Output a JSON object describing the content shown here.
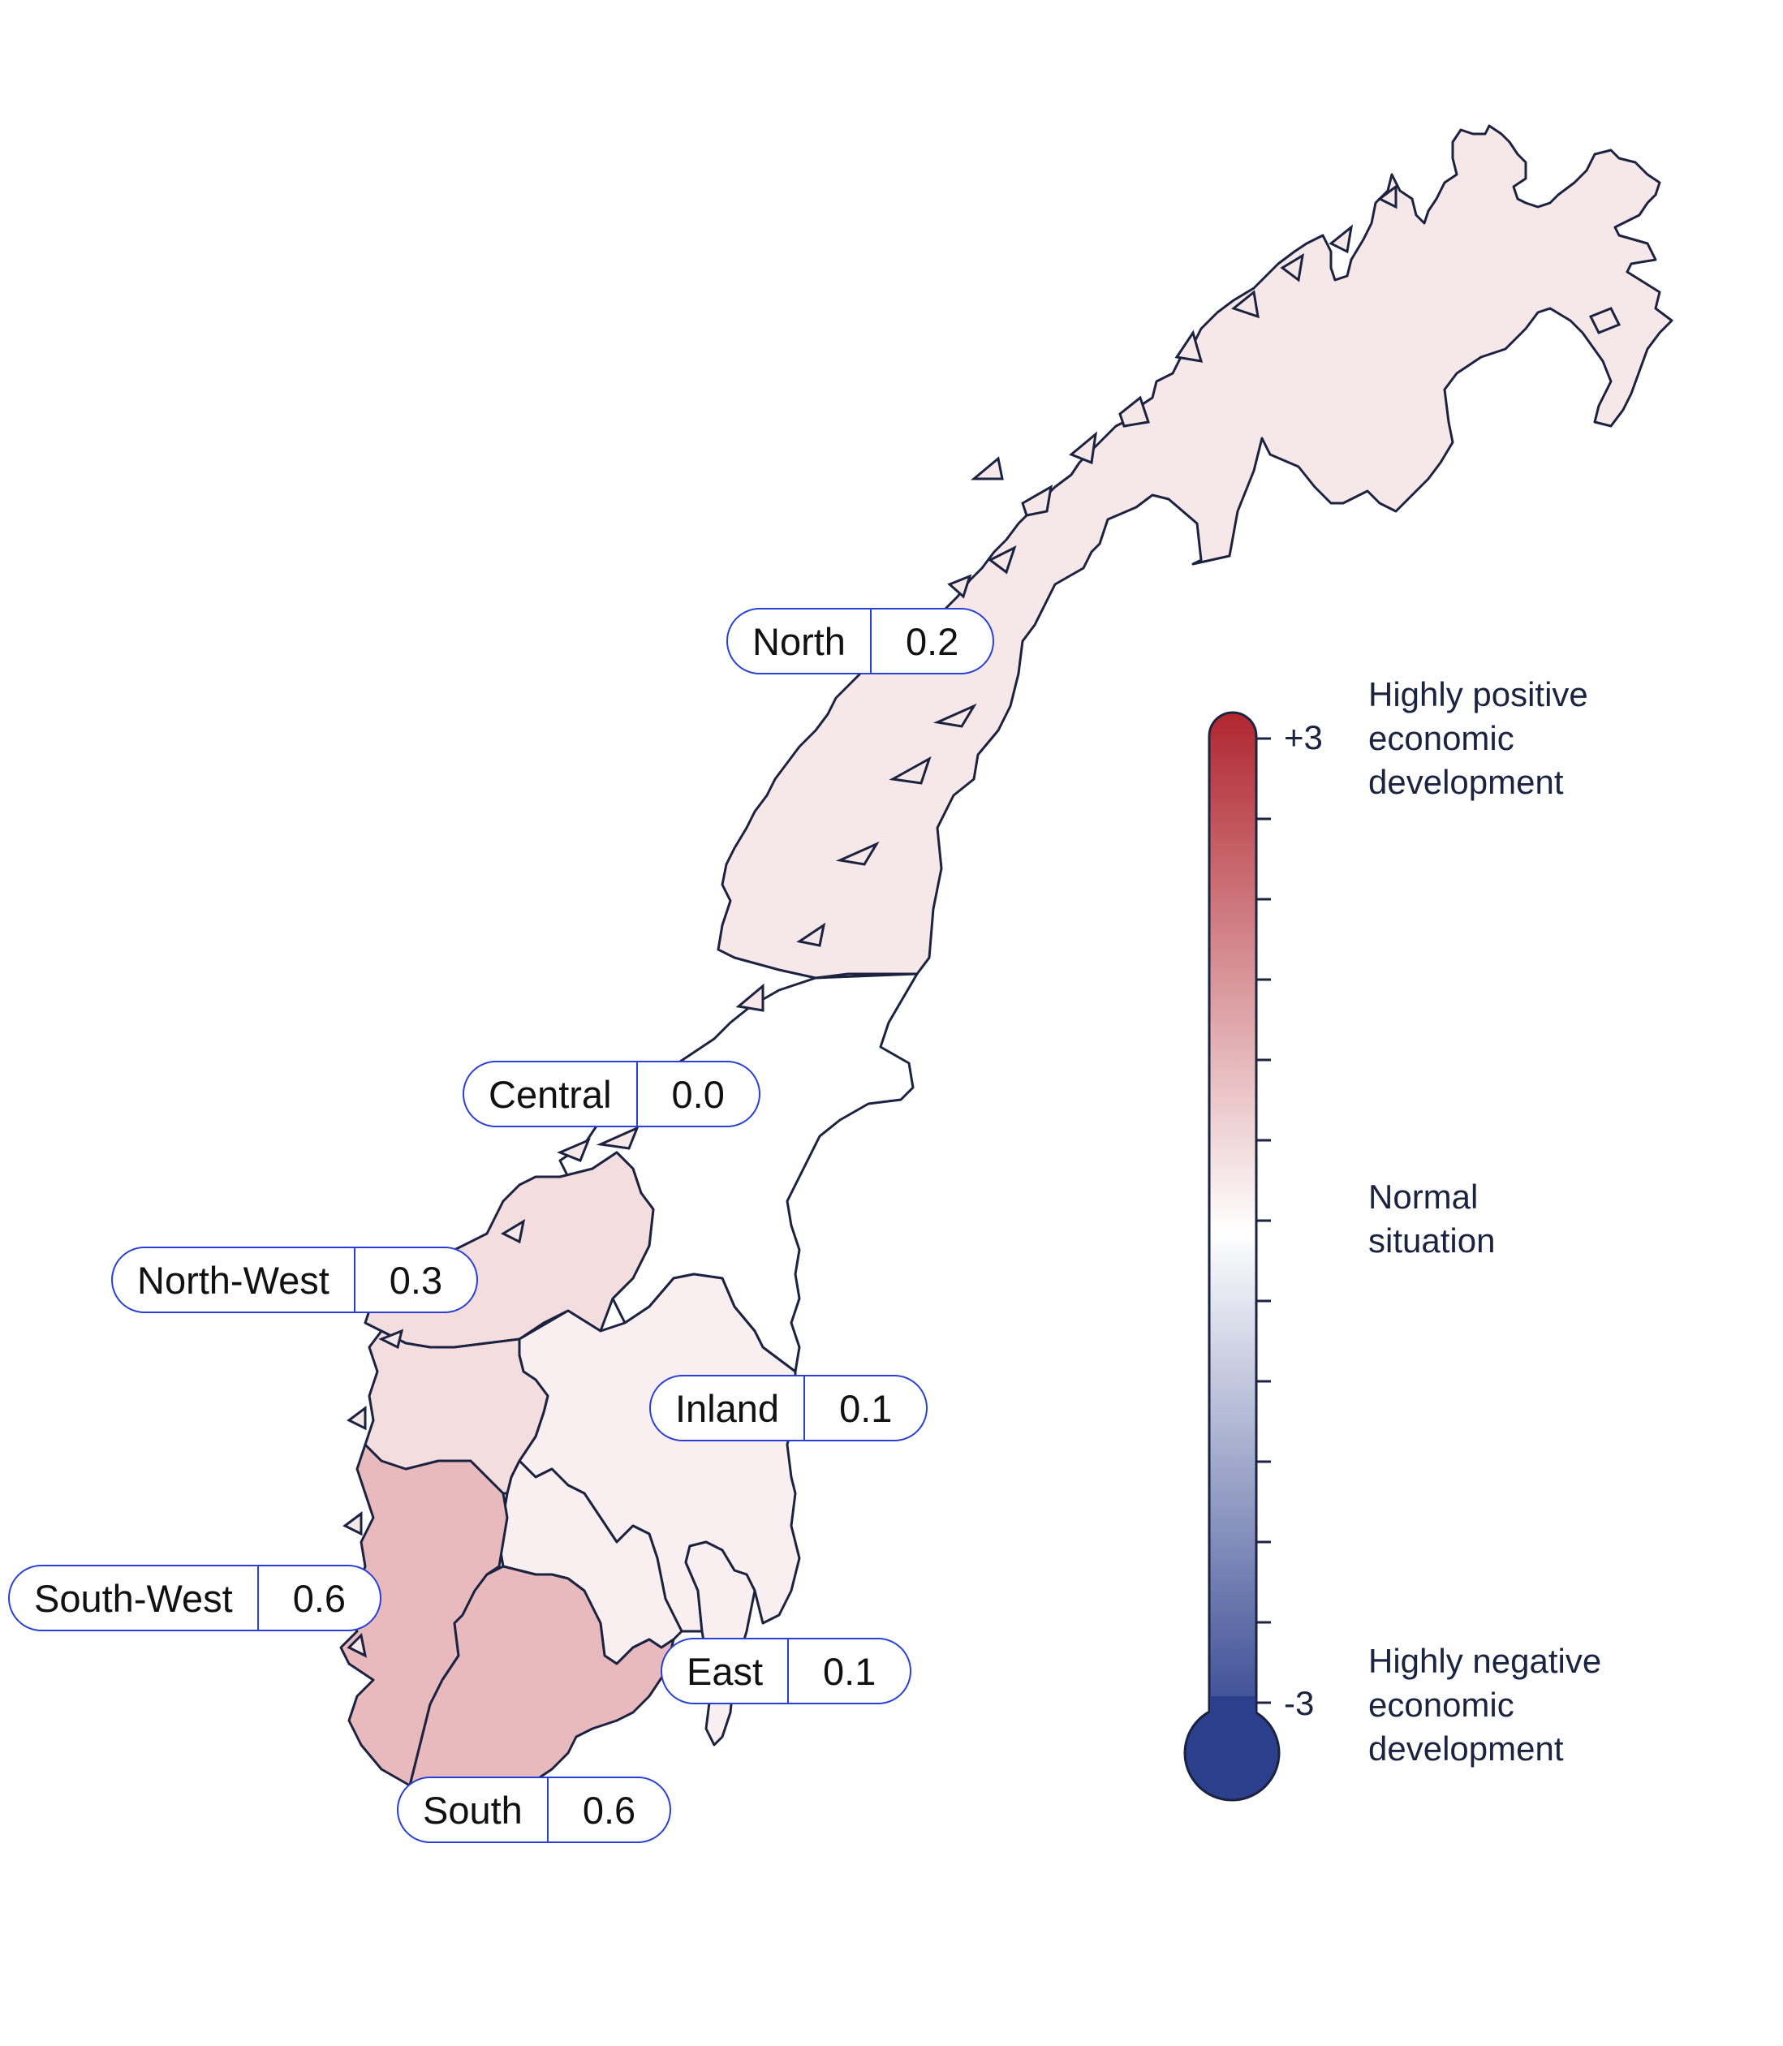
{
  "regions": [
    {
      "name": "North",
      "value": 0.2,
      "fill": "#f6e7e8"
    },
    {
      "name": "Central",
      "value": 0.0,
      "fill": "#ffffff"
    },
    {
      "name": "North-West",
      "value": 0.3,
      "fill": "#f3dddf"
    },
    {
      "name": "Inland",
      "value": 0.1,
      "fill": "#f9eff0"
    },
    {
      "name": "South-West",
      "value": 0.6,
      "fill": "#e8b9bd"
    },
    {
      "name": "East",
      "value": 0.1,
      "fill": "#f9eff0"
    },
    {
      "name": "South",
      "value": 0.6,
      "fill": "#e8b9bd"
    }
  ],
  "labels": {
    "north": {
      "name": "North",
      "value": "0.2"
    },
    "central": {
      "name": "Central",
      "value": "0.0"
    },
    "north_west": {
      "name": "North-West",
      "value": "0.3"
    },
    "inland": {
      "name": "Inland",
      "value": "0.1"
    },
    "south_west": {
      "name": "South-West",
      "value": "0.6"
    },
    "east": {
      "name": "East",
      "value": "0.1"
    },
    "south": {
      "name": "South",
      "value": "0.6"
    }
  },
  "legend": {
    "max_label": "+3",
    "min_label": "-3",
    "top_text": [
      "Highly positive",
      "economic",
      "development"
    ],
    "middle_text": [
      "Normal",
      "situation"
    ],
    "bottom_text": [
      "Highly negative",
      "economic",
      "development"
    ],
    "colors": {
      "positive": "#b0262f",
      "neutral": "#ffffff",
      "negative": "#2c3f8c"
    }
  },
  "colors": {
    "border": "#1b2340",
    "pill_border": "#2a3fd6"
  }
}
